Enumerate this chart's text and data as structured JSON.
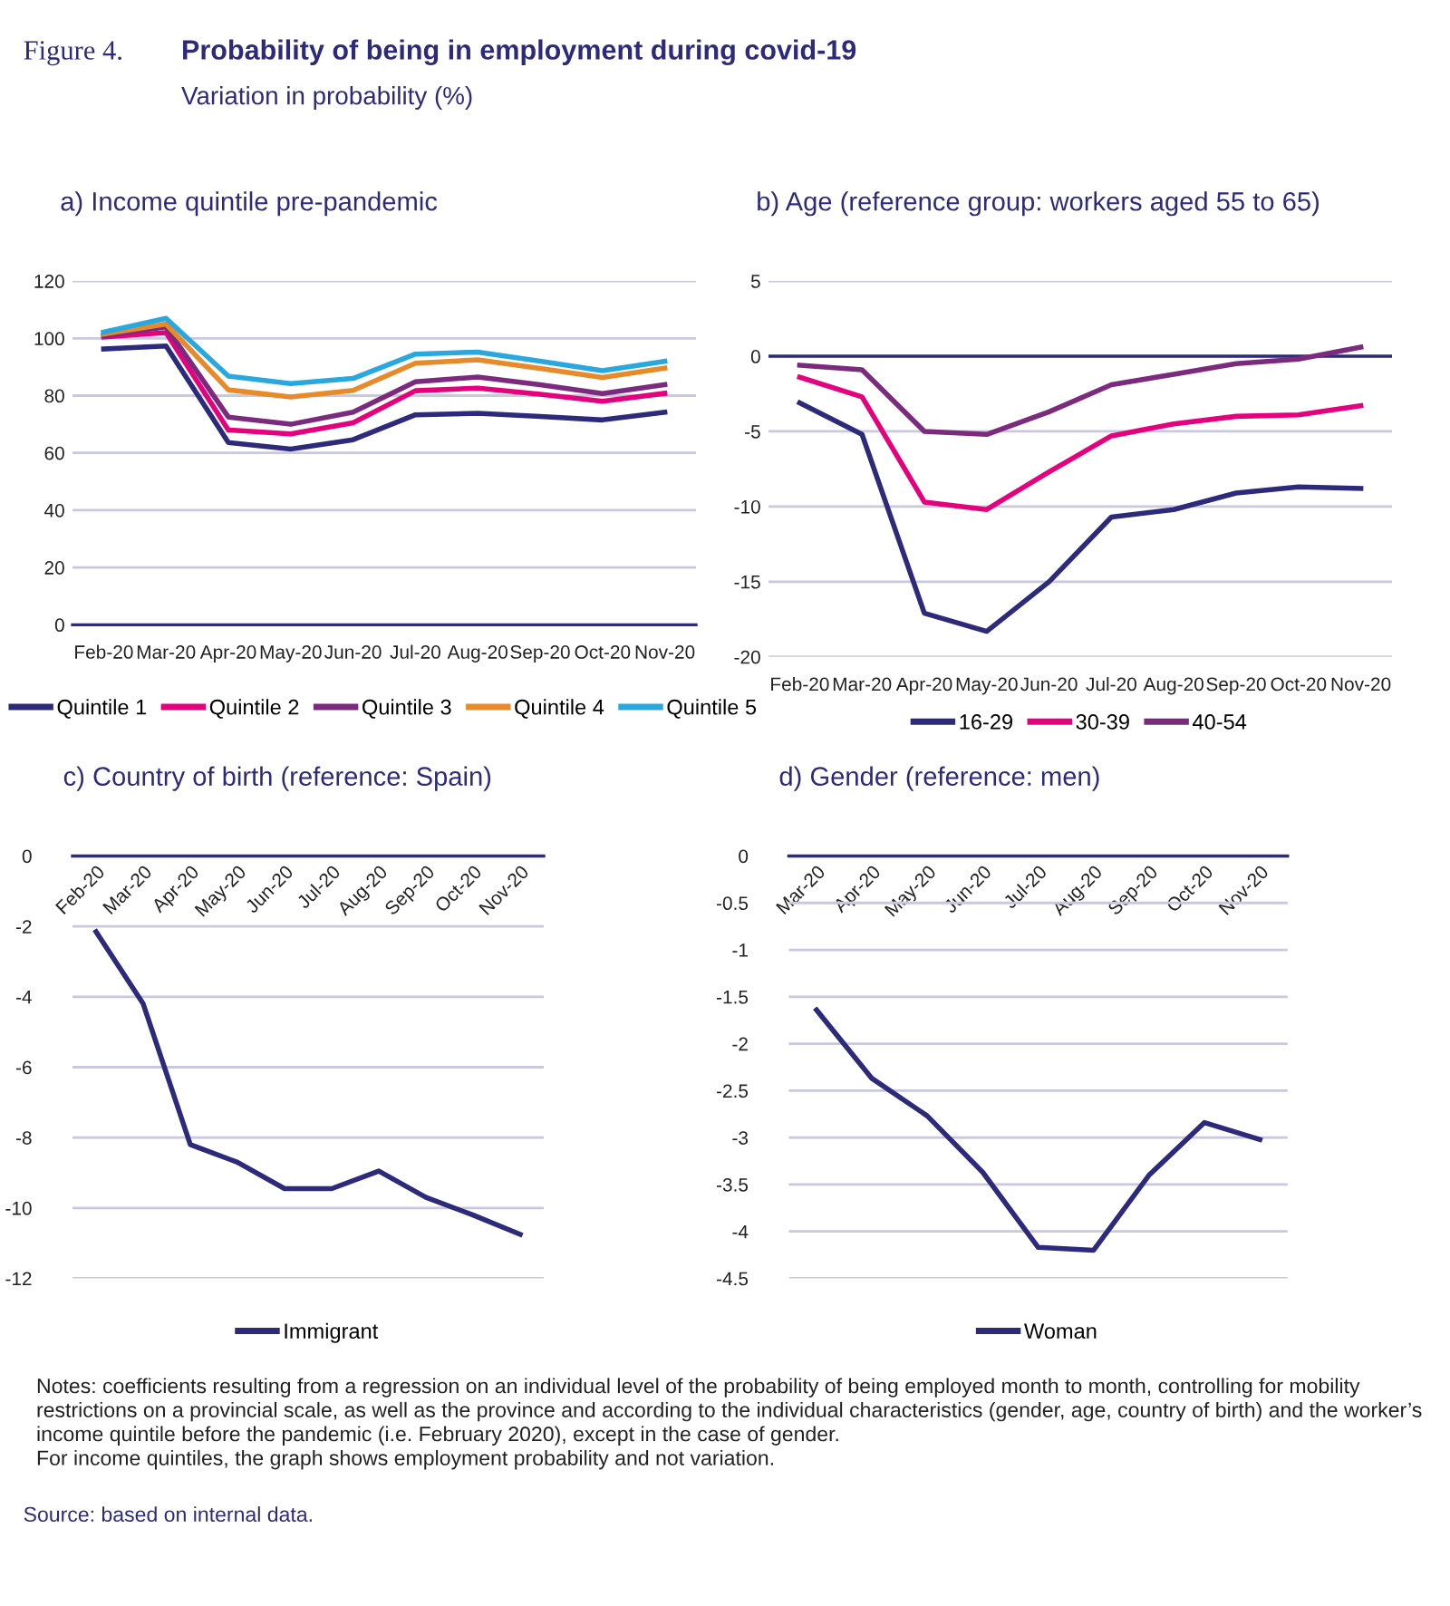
{
  "chart_data": [
    {
      "type": "line",
      "title": "a) Income quintile pre-pandemic",
      "annotations": [
        "Figure 4.",
        "Probability of being in employment during covid-19",
        "Variation in probability (%)"
      ],
      "categories": [
        "Feb-20",
        "Mar-20",
        "Apr-20",
        "May-20",
        "Jun-20",
        "Jul-20",
        "Aug-20",
        "Sep-20",
        "Oct-20",
        "Nov-20"
      ],
      "series": [
        {
          "name": "Quintile 1",
          "color": "#2d2a7b",
          "values": [
            96.3,
            97.3,
            63.6,
            61.3,
            64.6,
            73.3,
            73.8,
            72.7,
            71.5,
            74.2
          ]
        },
        {
          "name": "Quintile 2",
          "color": "#e5007e",
          "values": [
            100.5,
            102,
            68,
            66.6,
            70.5,
            81.7,
            82.6,
            80.5,
            78,
            80.8
          ]
        },
        {
          "name": "Quintile 3",
          "color": "#7b2a7e",
          "values": [
            101,
            104,
            72.5,
            70,
            74.2,
            84.8,
            86.5,
            83.8,
            80.7,
            83.8
          ]
        },
        {
          "name": "Quintile 4",
          "color": "#e88a2a",
          "values": [
            101.5,
            105,
            82,
            79.5,
            81.8,
            91.3,
            92.5,
            89.5,
            86.3,
            89.6
          ]
        },
        {
          "name": "Quintile 5",
          "color": "#29a8e0",
          "values": [
            102.2,
            107,
            86.8,
            84.2,
            86,
            94.5,
            95.2,
            92,
            88.7,
            92
          ]
        }
      ],
      "ylim": [
        0,
        120
      ],
      "yticks": [
        0,
        20,
        40,
        60,
        80,
        100,
        120
      ],
      "grid": "y",
      "legend": "bottom",
      "line_style": "solid"
    },
    {
      "type": "line",
      "title": "b) Age (reference group: workers aged 55 to 65)",
      "categories": [
        "Feb-20",
        "Mar-20",
        "Apr-20",
        "May-20",
        "Jun-20",
        "Jul-20",
        "Aug-20",
        "Sep-20",
        "Oct-20",
        "Nov-20"
      ],
      "series": [
        {
          "name": "16-29",
          "color": "#2d2a7b",
          "values": [
            -3.1,
            -5.2,
            -17.1,
            -18.3,
            -15,
            -10.7,
            -10.2,
            -9.1,
            -8.7,
            -8.8
          ]
        },
        {
          "name": "30-39",
          "color": "#e5007e",
          "values": [
            -1.4,
            -2.7,
            -9.7,
            -10.2,
            -7.7,
            -5.3,
            -4.5,
            -4.0,
            -3.9,
            -3.3
          ]
        },
        {
          "name": "40-54",
          "color": "#7b2a7e",
          "values": [
            -0.6,
            -0.9,
            -5.0,
            -5.2,
            -3.7,
            -1.9,
            -1.2,
            -0.5,
            -0.2,
            0.6
          ]
        }
      ],
      "ylim": [
        -20,
        5
      ],
      "yticks": [
        -20,
        -15,
        -10,
        -5,
        0,
        5
      ],
      "ref_lines": [
        {
          "axis": "y",
          "value": 0,
          "color": "#2d2a7b"
        }
      ],
      "grid": "y",
      "legend": "bottom",
      "line_style": "solid"
    },
    {
      "type": "line",
      "title": "c) Country of birth (reference: Spain)",
      "categories": [
        "Feb-20",
        "Mar-20",
        "Apr-20",
        "May-20",
        "Jun-20",
        "Jul-20",
        "Aug-20",
        "Sep-20",
        "Oct-20",
        "Nov-20"
      ],
      "series": [
        {
          "name": "Immigrant",
          "color": "#2d2a7b",
          "values": [
            -2.15,
            -4.2,
            -8.2,
            -8.7,
            -9.45,
            -9.45,
            -8.95,
            -9.7,
            -10.2,
            -10.75
          ]
        }
      ],
      "ylim": [
        -12,
        0
      ],
      "yticks": [
        -12,
        -10,
        -8,
        -6,
        -4,
        -2,
        0
      ],
      "grid": "y",
      "legend": "bottom",
      "line_style": "solid"
    },
    {
      "type": "line",
      "title": "d) Gender (reference: men)",
      "annotations": [
        "Notes: coefficients resulting from a regression on an individual level of the probability of being employed month to month, controlling for mobility restrictions on a provincial scale, as well as the province and according to the individual characteristics (gender, age, country of birth) and the worker’s income quintile before the pandemic (i.e. February 2020), except in the case of gender.\nFor income quintiles, the graph shows employment probability and not variation.",
        "Source: based on internal data."
      ],
      "categories": [
        "Mar-20",
        "Apr-20",
        "May-20",
        "Jun-20",
        "Jul-20",
        "Aug-20",
        "Sep-20",
        "Oct-20",
        "Nov-20"
      ],
      "series": [
        {
          "name": "Woman",
          "color": "#2d2a7b",
          "values": [
            -1.64,
            -2.37,
            -2.77,
            -3.37,
            -4.17,
            -4.2,
            -3.4,
            -2.84,
            -3.02
          ]
        }
      ],
      "ylim": [
        -4.5,
        0
      ],
      "yticks": [
        -4.5,
        -4,
        -3.5,
        -3,
        -2.5,
        -2,
        -1.5,
        -1,
        -0.5,
        0
      ],
      "grid": "y",
      "legend": "bottom",
      "line_style": "solid"
    }
  ]
}
